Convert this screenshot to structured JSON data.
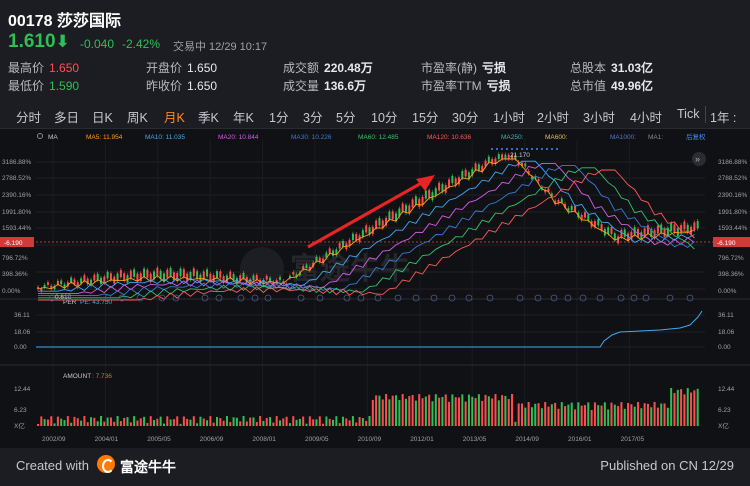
{
  "header": {
    "title": "00178 莎莎国际",
    "price": "1.610",
    "change": "-0.040",
    "change_pct": "-2.42%",
    "status": "交易中 12/29 10:17"
  },
  "stats": [
    {
      "k": "最高价",
      "v": "1.650",
      "cls": "red"
    },
    {
      "k": "开盘价",
      "v": "1.650",
      "cls": ""
    },
    {
      "k": "成交额",
      "v": "220.48万",
      "cls": "bold"
    },
    {
      "k": "市盈率(静)",
      "v": "亏损",
      "cls": "bold"
    },
    {
      "k": "总股本",
      "v": "31.03亿",
      "cls": "bold"
    },
    {
      "k": "最低价",
      "v": "1.590",
      "cls": "green"
    },
    {
      "k": "昨收价",
      "v": "1.650",
      "cls": ""
    },
    {
      "k": "成交量",
      "v": "136.6万",
      "cls": "bold"
    },
    {
      "k": "市盈率TTM",
      "v": "亏损",
      "cls": "bold"
    },
    {
      "k": "总市值",
      "v": "49.96亿",
      "cls": "bold"
    }
  ],
  "tabs": [
    "分时",
    "多日",
    "日K",
    "周K",
    "月K",
    "季K",
    "年K",
    "1分",
    "3分",
    "5分",
    "10分",
    "15分",
    "30分",
    "1小时",
    "2小时",
    "3小时",
    "4小时",
    "Tick",
    "1年 :"
  ],
  "active_tab": "月K",
  "ma_legend": [
    {
      "label": "MA",
      "color": "#c8c8cc"
    },
    {
      "label": "MA5: 11.954",
      "color": "#ff9f1a"
    },
    {
      "label": "MA10: 11.035",
      "color": "#3fa9f5"
    },
    {
      "label": "MA20: 10.844",
      "color": "#d65ce6"
    },
    {
      "label": "MA30: 10.226",
      "color": "#3a7bd5"
    },
    {
      "label": "MA60: 12.485",
      "color": "#33c26b"
    },
    {
      "label": "MA120: 10.636",
      "color": "#ff5a5a"
    },
    {
      "label": "MA250:",
      "color": "#3ab7b7"
    },
    {
      "label": "MA600:",
      "color": "#e6c24a"
    },
    {
      "label": "MA1000:",
      "color": "#5577cc"
    },
    {
      "label": "MA1:",
      "color": "#888888"
    },
    {
      "label": "后复权",
      "color": "#3f8cff"
    }
  ],
  "price_axis": [
    "3186.88%",
    "2788.52%",
    "2390.16%",
    "1991.80%",
    "1593.44%",
    "796.72%",
    "398.36%",
    "0.00%"
  ],
  "price_axis_values": [
    3186.88,
    2788.52,
    2390.16,
    1991.8,
    1593.44,
    796.72,
    398.36,
    0.0
  ],
  "ref_label": "-6.190",
  "high_label": "21.170",
  "low_label": "0.610",
  "watermark": "富途牛牛",
  "per_legend": [
    {
      "label": "PER",
      "color": "#c8c8cc"
    },
    {
      "label": "PE: 43.750",
      "color": "#3fa9f5"
    }
  ],
  "per_axis": [
    "36.11",
    "18.06",
    "0.00"
  ],
  "amount_legend": [
    {
      "label": "AMOUNT",
      "color": "#c8c8cc"
    },
    {
      "label": ": 7.736",
      "color": "#ff5a5a"
    }
  ],
  "amount_axis": [
    "12.44",
    "6.23",
    "X亿"
  ],
  "x_axis": [
    "2002/09",
    "2004/01",
    "2005/05",
    "2006/09",
    "2008/01",
    "2009/05",
    "2010/09",
    "2012/01",
    "2013/05",
    "2014/09",
    "2016/01",
    "2017/05"
  ],
  "footer": {
    "created": "Created with",
    "brand": "富途牛牛",
    "published": "Published on CN 12/29"
  }
}
